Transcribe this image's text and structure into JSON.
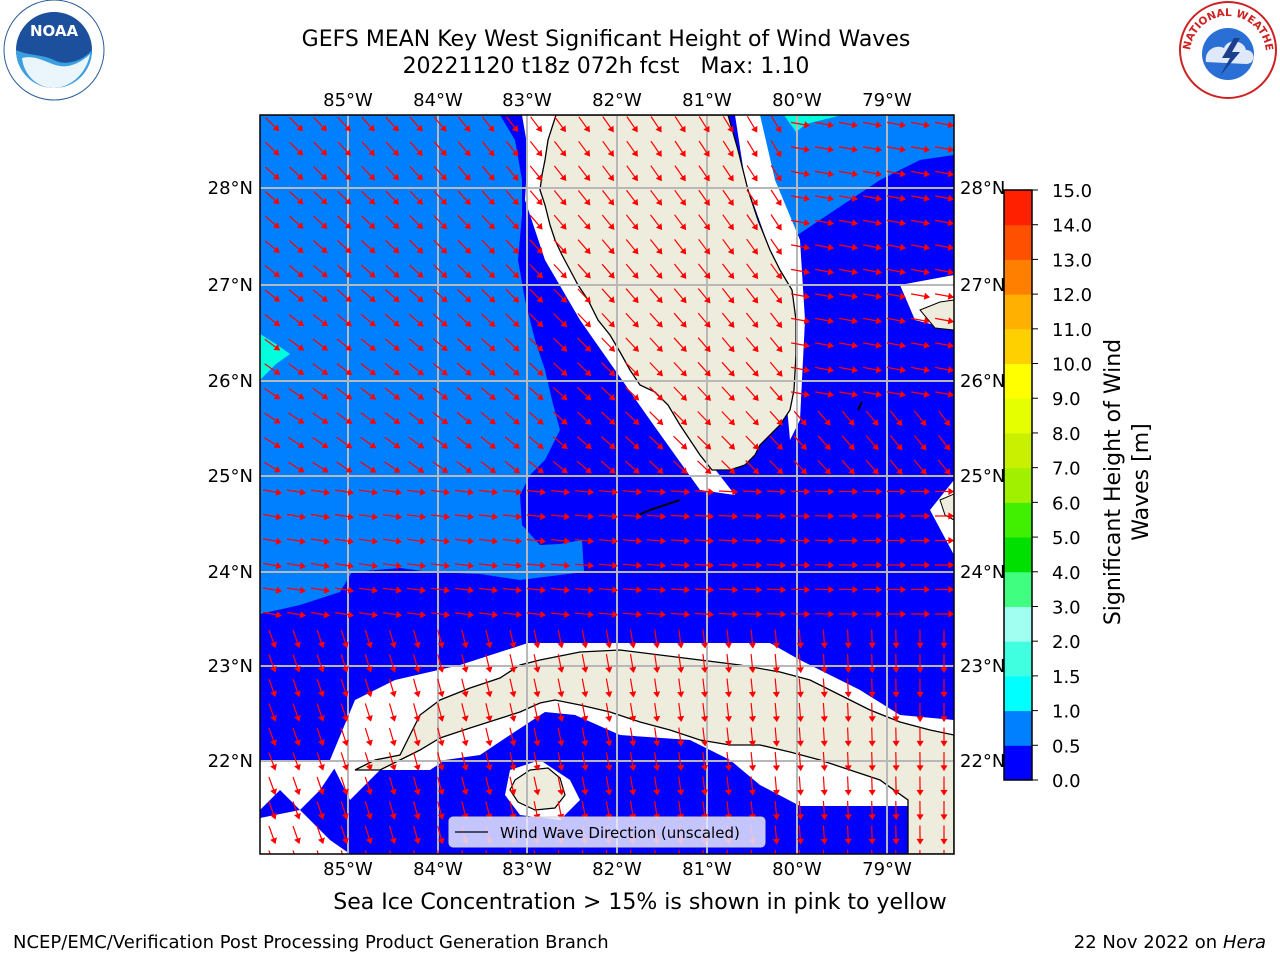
{
  "title": {
    "line1": "GEFS MEAN Key West Significant Height of Wind Waves",
    "run": "20221120 t18z 072h fcst",
    "max": "Max: 1.10"
  },
  "map": {
    "lon_labels": [
      "85°W",
      "84°W",
      "83°W",
      "82°W",
      "81°W",
      "80°W",
      "79°W"
    ],
    "lat_labels": [
      "28°N",
      "27°N",
      "26°N",
      "25°N",
      "24°N",
      "23°N",
      "22°N"
    ],
    "extent": {
      "lon": [
        -86,
        -78.3
      ],
      "lat": [
        21,
        28.8
      ]
    },
    "colors": {
      "land": "#eeecdc",
      "deep": "#0000ff",
      "mid": "#0080ff",
      "cyan": "#00ffdd",
      "arrow": "#ff0000",
      "grid": "#b8b8b8"
    },
    "legend": "Wind Wave Direction (unscaled)"
  },
  "colorbar": {
    "title": "Significant Height of Wind Waves [m]",
    "ticks": [
      "0.0",
      "0.5",
      "1.0",
      "1.5",
      "2.0",
      "3.0",
      "4.0",
      "5.0",
      "6.0",
      "7.0",
      "8.0",
      "9.0",
      "10.0",
      "11.0",
      "12.0",
      "13.0",
      "14.0",
      "15.0"
    ],
    "colors": [
      "#0000ff",
      "#0080ff",
      "#00ffff",
      "#40ffe0",
      "#a0fff0",
      "#40ff80",
      "#00e000",
      "#40f000",
      "#a0f000",
      "#c8f000",
      "#e6ff00",
      "#ffff00",
      "#ffd000",
      "#ffb000",
      "#ff8000",
      "#ff5000",
      "#ff2000",
      "#ff0000"
    ]
  },
  "caption": "Sea Ice Concentration > 15% is shown in pink to yellow",
  "footer": {
    "left": "NCEP/EMC/Verification Post Processing Product Generation Branch",
    "date": "22 Nov 2022 on",
    "machine": "Hera"
  },
  "logos": {
    "noaa": "NOAA",
    "nws": "NATIONAL WEATHER SERVICE"
  }
}
